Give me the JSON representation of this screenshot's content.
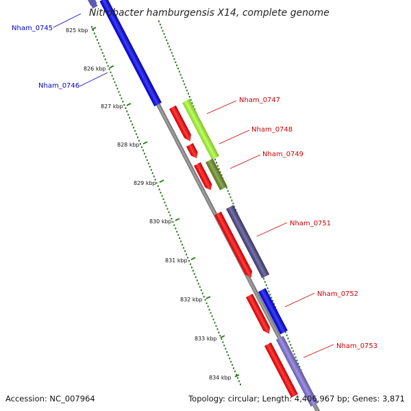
{
  "title": "Nitrobacter hamburgensis X14, complete genome",
  "footer": {
    "accession": "Accession: NC_007964",
    "summary": "Topology: circular; Length: 4,406,967 bp; Genes: 3,871"
  },
  "ticks": [
    "825 kbp",
    "826 kbp",
    "827 kbp",
    "828 kbp",
    "829 kbp",
    "830 kbp",
    "831 kbp",
    "832 kbp",
    "833 kbp",
    "834 kbp"
  ],
  "gene_labels": [
    {
      "label": "Nham_0745",
      "color": "#0000cc"
    },
    {
      "label": "Nham_0746",
      "color": "#0000cc"
    },
    {
      "label": "Nham_0747",
      "color": "#cc0000"
    },
    {
      "label": "Nham_0748",
      "color": "#cc0000"
    },
    {
      "label": "Nham_0749",
      "color": "#cc0000"
    },
    {
      "label": "Nham_0751",
      "color": "#cc0000"
    },
    {
      "label": "Nham_0752",
      "color": "#cc0000"
    },
    {
      "label": "Nham_0753",
      "color": "#cc0000"
    }
  ],
  "colors": {
    "backbone": "#8a8a8a",
    "tick_dots": "#2e7d1e",
    "orf_arrow": "#ff0000",
    "gene_blue": "#0000ee",
    "gene_lime": "#aaff33",
    "gene_olive": "#6b8e23",
    "gene_slate": "#4a4486",
    "gene_lavender": "#7f70d6"
  }
}
